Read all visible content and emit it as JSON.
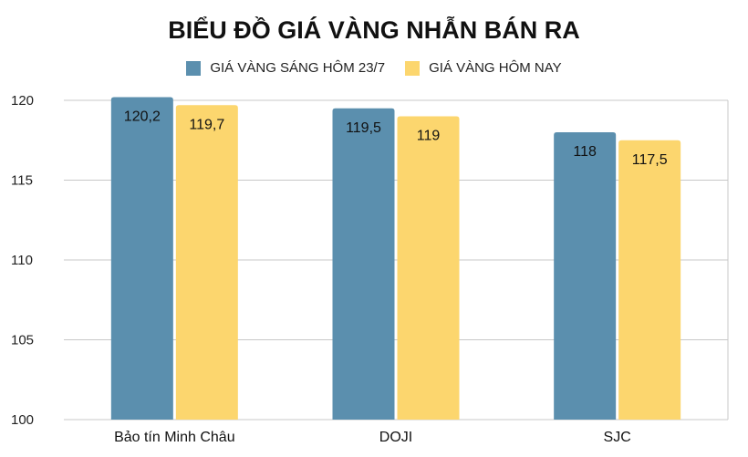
{
  "chart_data": {
    "type": "bar",
    "title": "BIỂU ĐỒ GIÁ VÀNG NHẪN BÁN RA",
    "categories": [
      "Bảo tín Minh Châu",
      "DOJI",
      "SJC"
    ],
    "series": [
      {
        "name": "GIÁ VÀNG SÁNG HÔM 23/7",
        "values": [
          120.2,
          119.5,
          118
        ],
        "labels": [
          "120,2",
          "119,5",
          "118"
        ],
        "color": "#5b8fae"
      },
      {
        "name": "GIÁ VÀNG HÔM NAY",
        "values": [
          119.7,
          119,
          117.5
        ],
        "labels": [
          "119,7",
          "119",
          "117,5"
        ],
        "color": "#fcd66e"
      }
    ],
    "ylim": [
      100,
      120
    ],
    "yticks": [
      100,
      105,
      110,
      115,
      120
    ],
    "grid": true,
    "legend": "top-center",
    "xlabel": "",
    "ylabel": ""
  }
}
